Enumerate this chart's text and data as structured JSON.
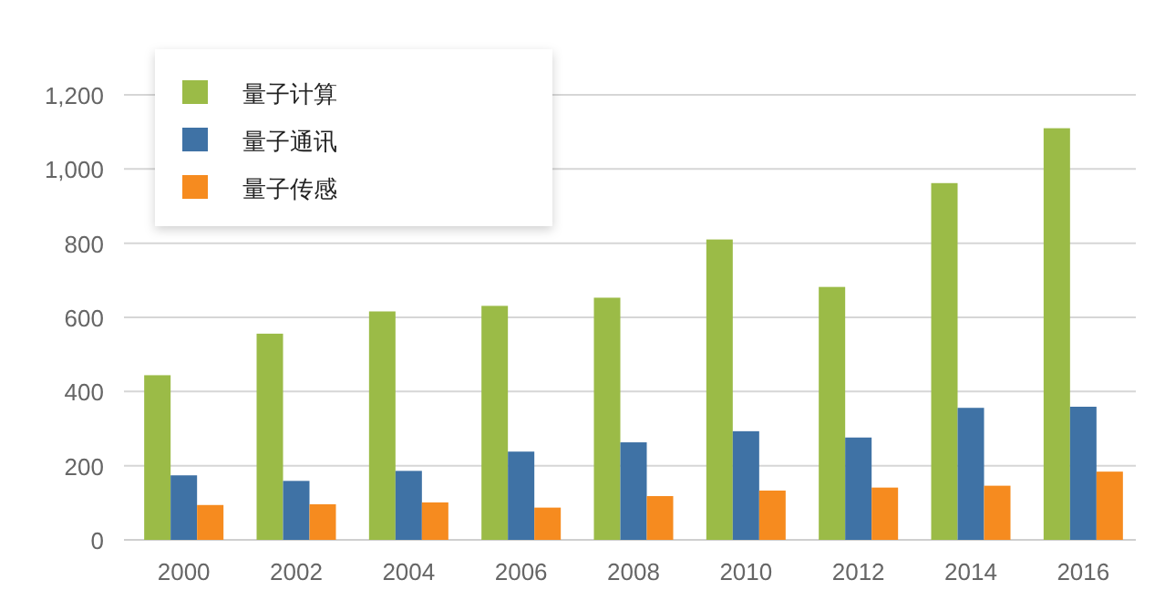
{
  "chart_data": {
    "type": "bar",
    "categories": [
      "2000",
      "2002",
      "2004",
      "2006",
      "2008",
      "2010",
      "2012",
      "2014",
      "2016"
    ],
    "series": [
      {
        "name": "量子计算",
        "color": "#9bbb47",
        "values": [
          444,
          556,
          616,
          631,
          653,
          810,
          682,
          962,
          1110
        ]
      },
      {
        "name": "量子通讯",
        "color": "#3f72a5",
        "values": [
          174,
          159,
          186,
          238,
          263,
          293,
          276,
          356,
          359
        ]
      },
      {
        "name": "量子传感",
        "color": "#f68b1f",
        "values": [
          94,
          96,
          101,
          87,
          118,
          133,
          141,
          146,
          184
        ]
      }
    ],
    "ylim": [
      0,
      1200
    ],
    "yticks": [
      0,
      {
        "value": 200,
        "label": "200"
      },
      {
        "value": 400,
        "label": "400"
      },
      {
        "value": 600,
        "label": "600"
      },
      {
        "value": 800,
        "label": "800"
      },
      {
        "value": 1000,
        "label": "1,000"
      },
      {
        "value": 1200,
        "label": "1,200"
      }
    ],
    "grid": "y",
    "legend": "top left"
  }
}
